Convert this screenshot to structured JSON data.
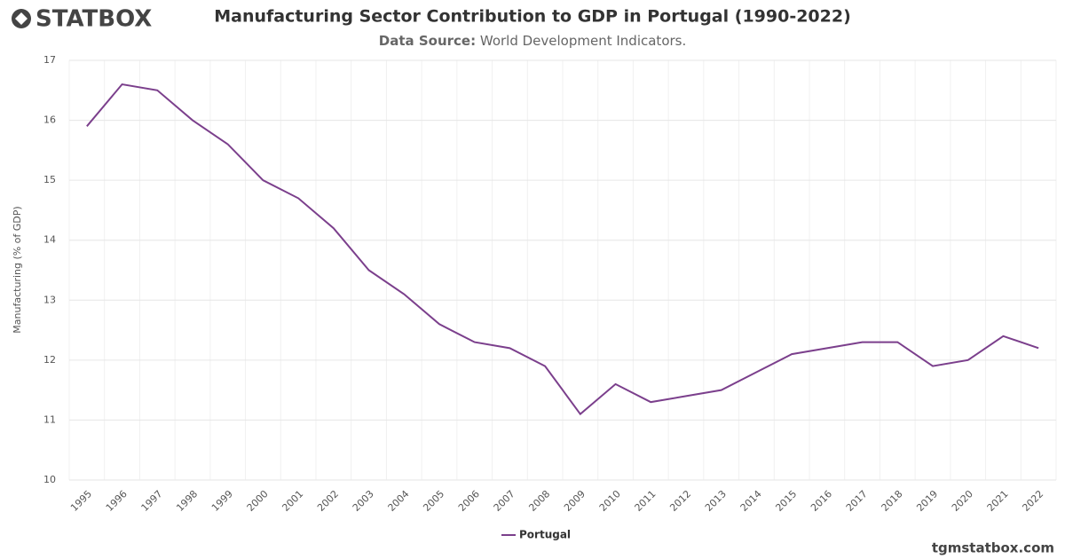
{
  "logo": "STATBOX",
  "footer": "tgmstatbox.com",
  "chart_data": {
    "type": "line",
    "title": "Manufacturing Sector Contribution to GDP in Portugal (1990-2022)",
    "source_label": "Data Source:",
    "source": "World Development Indicators.",
    "y_label": "Manufacturing (% of GDP)",
    "categories": [
      "1995",
      "1996",
      "1997",
      "1998",
      "1999",
      "2000",
      "2001",
      "2002",
      "2003",
      "2004",
      "2005",
      "2006",
      "2007",
      "2008",
      "2009",
      "2010",
      "2011",
      "2012",
      "2013",
      "2014",
      "2015",
      "2016",
      "2017",
      "2018",
      "2019",
      "2020",
      "2021",
      "2022"
    ],
    "series": [
      {
        "name": "Portugal",
        "color": "#7b3f8c",
        "values": [
          15.9,
          16.6,
          16.5,
          16.0,
          15.6,
          15.0,
          14.7,
          14.2,
          13.5,
          13.1,
          12.6,
          12.3,
          12.2,
          11.9,
          11.1,
          11.6,
          11.3,
          11.4,
          11.5,
          11.8,
          12.1,
          12.2,
          12.3,
          12.3,
          11.9,
          12.0,
          12.4,
          12.2
        ]
      }
    ],
    "ylim": [
      10,
      17
    ],
    "yticks": [
      10,
      11,
      12,
      13,
      14,
      15,
      16,
      17
    ],
    "grid": true
  }
}
